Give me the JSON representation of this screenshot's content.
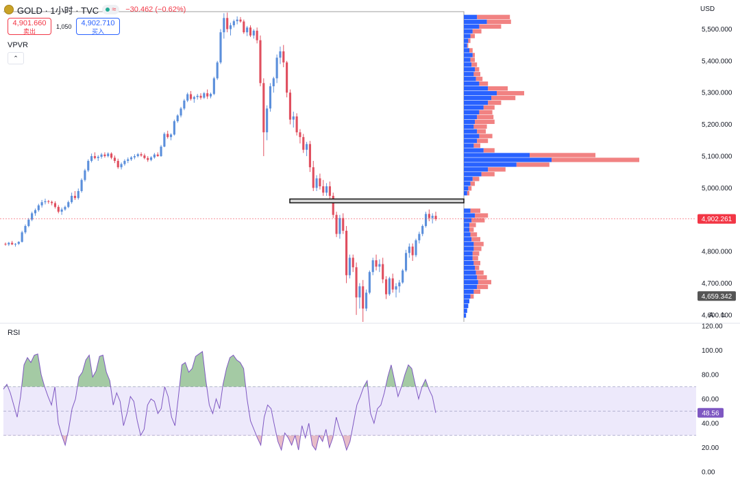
{
  "header": {
    "symbol_title": "GOLD · 1小时 · TVC",
    "status_glyph": "≈",
    "change": "−30.462 (−0.62%)"
  },
  "trade": {
    "sell_price": "4,901.660",
    "sell_label": "卖出",
    "spread": "1,050",
    "buy_price": "4,902.710",
    "buy_label": "买入"
  },
  "indicators": {
    "vpvr_label": "VPVR",
    "collapse_glyph": "⌃",
    "rsi_label": "RSI"
  },
  "axis": {
    "currency": "USD",
    "auto_label": "A",
    "log_label": "L"
  },
  "colors": {
    "up": "#5b8fdb",
    "down": "#e04f5f",
    "vp_up": "#2962ff",
    "vp_down": "#ef6c6c",
    "rsi_line": "#7e57c2",
    "rsi_band": "#ede9fb",
    "last_price": "#f23645",
    "level_tag": "#555555",
    "rsi_tag": "#7e57c2"
  },
  "chart_data": [
    {
      "type": "candlestick",
      "symbol": "GOLD",
      "interval": "1小时",
      "y_ticks": [
        "5,500.000",
        "5,400.000",
        "5,300.000",
        "5,200.000",
        "5,100.000",
        "5,000.000",
        "4,900.000",
        "4,800.000",
        "4,700.000",
        "4,600.000"
      ],
      "y_tick_values": [
        5500,
        5400,
        5300,
        5200,
        5100,
        5000,
        4900,
        4800,
        4700,
        4600
      ],
      "ylim": [
        4578,
        5555
      ],
      "grid": false,
      "last_price": 4902.261,
      "last_price_label": "4,902.261",
      "level_price": 4659.342,
      "level_price_label": "4,659.342",
      "highlight_zone": [
        4953,
        4965
      ],
      "candles": [
        [
          4824,
          4828,
          4818,
          4822
        ],
        [
          4822,
          4830,
          4817,
          4827
        ],
        [
          4827,
          4833,
          4820,
          4822
        ],
        [
          4822,
          4826,
          4815,
          4824
        ],
        [
          4824,
          4832,
          4820,
          4830
        ],
        [
          4830,
          4865,
          4828,
          4860
        ],
        [
          4860,
          4885,
          4855,
          4880
        ],
        [
          4880,
          4905,
          4876,
          4900
        ],
        [
          4900,
          4925,
          4895,
          4920
        ],
        [
          4920,
          4935,
          4912,
          4930
        ],
        [
          4930,
          4950,
          4925,
          4945
        ],
        [
          4945,
          4962,
          4938,
          4955
        ],
        [
          4955,
          4966,
          4948,
          4958
        ],
        [
          4958,
          4962,
          4950,
          4956
        ],
        [
          4956,
          4960,
          4945,
          4952
        ],
        [
          4952,
          4958,
          4935,
          4940
        ],
        [
          4940,
          4946,
          4920,
          4925
        ],
        [
          4925,
          4938,
          4915,
          4932
        ],
        [
          4932,
          4944,
          4928,
          4940
        ],
        [
          4940,
          4960,
          4936,
          4955
        ],
        [
          4955,
          4985,
          4950,
          4975
        ],
        [
          4975,
          4990,
          4962,
          4968
        ],
        [
          4968,
          4998,
          4963,
          4990
        ],
        [
          4990,
          5030,
          4985,
          5025
        ],
        [
          5025,
          5060,
          5020,
          5055
        ],
        [
          5055,
          5090,
          5050,
          5085
        ],
        [
          5085,
          5108,
          5080,
          5100
        ],
        [
          5100,
          5112,
          5090,
          5094
        ],
        [
          5094,
          5103,
          5085,
          5098
        ],
        [
          5098,
          5110,
          5092,
          5105
        ],
        [
          5105,
          5112,
          5095,
          5100
        ],
        [
          5100,
          5112,
          5096,
          5108
        ],
        [
          5108,
          5112,
          5090,
          5095
        ],
        [
          5095,
          5102,
          5078,
          5085
        ],
        [
          5085,
          5092,
          5060,
          5065
        ],
        [
          5065,
          5080,
          5058,
          5075
        ],
        [
          5075,
          5090,
          5070,
          5085
        ],
        [
          5085,
          5096,
          5078,
          5090
        ],
        [
          5090,
          5100,
          5085,
          5096
        ],
        [
          5096,
          5106,
          5090,
          5100
        ],
        [
          5100,
          5110,
          5096,
          5106
        ],
        [
          5106,
          5112,
          5098,
          5102
        ],
        [
          5102,
          5108,
          5090,
          5094
        ],
        [
          5094,
          5100,
          5082,
          5088
        ],
        [
          5088,
          5100,
          5084,
          5096
        ],
        [
          5096,
          5110,
          5092,
          5105
        ],
        [
          5105,
          5112,
          5098,
          5100
        ],
        [
          5100,
          5135,
          5098,
          5130
        ],
        [
          5130,
          5175,
          5128,
          5170
        ],
        [
          5170,
          5180,
          5155,
          5160
        ],
        [
          5160,
          5172,
          5150,
          5168
        ],
        [
          5168,
          5215,
          5165,
          5210
        ],
        [
          5210,
          5232,
          5205,
          5228
        ],
        [
          5228,
          5255,
          5222,
          5250
        ],
        [
          5250,
          5280,
          5245,
          5275
        ],
        [
          5275,
          5300,
          5270,
          5295
        ],
        [
          5295,
          5305,
          5275,
          5280
        ],
        [
          5280,
          5290,
          5268,
          5286
        ],
        [
          5286,
          5296,
          5278,
          5290
        ],
        [
          5290,
          5298,
          5278,
          5284
        ],
        [
          5284,
          5302,
          5280,
          5298
        ],
        [
          5298,
          5310,
          5280,
          5288
        ],
        [
          5288,
          5300,
          5282,
          5296
        ],
        [
          5296,
          5350,
          5292,
          5345
        ],
        [
          5345,
          5400,
          5340,
          5395
        ],
        [
          5395,
          5500,
          5390,
          5490
        ],
        [
          5490,
          5550,
          5470,
          5535
        ],
        [
          5535,
          5552,
          5490,
          5500
        ],
        [
          5500,
          5520,
          5480,
          5512
        ],
        [
          5512,
          5530,
          5505,
          5525
        ],
        [
          5525,
          5540,
          5515,
          5530
        ],
        [
          5530,
          5538,
          5520,
          5524
        ],
        [
          5524,
          5530,
          5485,
          5490
        ],
        [
          5490,
          5510,
          5478,
          5505
        ],
        [
          5505,
          5512,
          5475,
          5480
        ],
        [
          5480,
          5500,
          5470,
          5495
        ],
        [
          5495,
          5505,
          5455,
          5465
        ],
        [
          5465,
          5480,
          5320,
          5330
        ],
        [
          5330,
          5345,
          5100,
          5175
        ],
        [
          5175,
          5260,
          5150,
          5250
        ],
        [
          5250,
          5330,
          5240,
          5320
        ],
        [
          5320,
          5350,
          5300,
          5345
        ],
        [
          5345,
          5420,
          5330,
          5410
        ],
        [
          5410,
          5445,
          5390,
          5430
        ],
        [
          5430,
          5450,
          5380,
          5395
        ],
        [
          5395,
          5400,
          5285,
          5300
        ],
        [
          5300,
          5310,
          5200,
          5215
        ],
        [
          5215,
          5240,
          5190,
          5225
        ],
        [
          5225,
          5235,
          5165,
          5175
        ],
        [
          5175,
          5185,
          5140,
          5160
        ],
        [
          5160,
          5170,
          5110,
          5120
        ],
        [
          5120,
          5145,
          5100,
          5138
        ],
        [
          5138,
          5148,
          5050,
          5065
        ],
        [
          5065,
          5085,
          4990,
          5000
        ],
        [
          5000,
          5040,
          4990,
          5030
        ],
        [
          5030,
          5045,
          4995,
          5005
        ],
        [
          5005,
          5025,
          4975,
          4985
        ],
        [
          4985,
          5015,
          4975,
          5005
        ],
        [
          5005,
          5020,
          4960,
          4975
        ],
        [
          4975,
          4985,
          4905,
          4915
        ],
        [
          4915,
          4925,
          4845,
          4855
        ],
        [
          4855,
          4915,
          4840,
          4905
        ],
        [
          4905,
          4920,
          4855,
          4865
        ],
        [
          4865,
          4880,
          4700,
          4725
        ],
        [
          4725,
          4790,
          4715,
          4780
        ],
        [
          4780,
          4790,
          4735,
          4750
        ],
        [
          4750,
          4765,
          4600,
          4655
        ],
        [
          4655,
          4700,
          4620,
          4690
        ],
        [
          4690,
          4710,
          4578,
          4620
        ],
        [
          4620,
          4680,
          4612,
          4670
        ],
        [
          4670,
          4740,
          4665,
          4735
        ],
        [
          4735,
          4780,
          4725,
          4772
        ],
        [
          4772,
          4790,
          4740,
          4752
        ],
        [
          4752,
          4775,
          4735,
          4760
        ],
        [
          4760,
          4780,
          4700,
          4712
        ],
        [
          4712,
          4722,
          4650,
          4665
        ],
        [
          4665,
          4720,
          4660,
          4715
        ],
        [
          4715,
          4730,
          4670,
          4680
        ],
        [
          4680,
          4700,
          4655,
          4690
        ],
        [
          4690,
          4710,
          4670,
          4702
        ],
        [
          4702,
          4745,
          4698,
          4740
        ],
        [
          4740,
          4805,
          4735,
          4795
        ],
        [
          4795,
          4825,
          4780,
          4815
        ],
        [
          4815,
          4825,
          4770,
          4788
        ],
        [
          4788,
          4840,
          4782,
          4835
        ],
        [
          4835,
          4862,
          4825,
          4855
        ],
        [
          4855,
          4885,
          4848,
          4880
        ],
        [
          4880,
          4925,
          4875,
          4918
        ],
        [
          4918,
          4932,
          4895,
          4905
        ],
        [
          4905,
          4920,
          4888,
          4912
        ],
        [
          4912,
          4925,
          4896,
          4902
        ]
      ]
    },
    {
      "type": "horizontal_volume_profile",
      "name": "VPVR",
      "note": "rows of [price_low, price_high, up_volume, down_volume] in relative units",
      "rows": [
        [
          5530,
          5545,
          12,
          30
        ],
        [
          5515,
          5530,
          21,
          22
        ],
        [
          5500,
          5515,
          14,
          20
        ],
        [
          5485,
          5500,
          8,
          8
        ],
        [
          5470,
          5485,
          6,
          4
        ],
        [
          5455,
          5470,
          4,
          2
        ],
        [
          5440,
          5455,
          3,
          1
        ],
        [
          5425,
          5440,
          5,
          3
        ],
        [
          5410,
          5425,
          8,
          2
        ],
        [
          5395,
          5410,
          6,
          4
        ],
        [
          5380,
          5395,
          7,
          5
        ],
        [
          5365,
          5380,
          10,
          4
        ],
        [
          5350,
          5365,
          9,
          6
        ],
        [
          5335,
          5350,
          11,
          6
        ],
        [
          5320,
          5335,
          14,
          8
        ],
        [
          5305,
          5320,
          22,
          18
        ],
        [
          5290,
          5305,
          30,
          25
        ],
        [
          5275,
          5290,
          25,
          22
        ],
        [
          5260,
          5275,
          22,
          12
        ],
        [
          5245,
          5260,
          18,
          10
        ],
        [
          5230,
          5245,
          14,
          12
        ],
        [
          5215,
          5230,
          12,
          15
        ],
        [
          5200,
          5215,
          10,
          18
        ],
        [
          5185,
          5200,
          9,
          12
        ],
        [
          5170,
          5185,
          12,
          8
        ],
        [
          5155,
          5170,
          14,
          12
        ],
        [
          5140,
          5155,
          12,
          10
        ],
        [
          5125,
          5140,
          9,
          6
        ],
        [
          5110,
          5125,
          18,
          10
        ],
        [
          5095,
          5110,
          60,
          60
        ],
        [
          5080,
          5095,
          80,
          80
        ],
        [
          5065,
          5080,
          48,
          30
        ],
        [
          5050,
          5065,
          22,
          16
        ],
        [
          5035,
          5050,
          16,
          12
        ],
        [
          5020,
          5035,
          8,
          6
        ],
        [
          5005,
          5020,
          6,
          4
        ],
        [
          4990,
          5005,
          4,
          3
        ],
        [
          4975,
          4990,
          3,
          2
        ],
        [
          4920,
          4935,
          6,
          9
        ],
        [
          4905,
          4920,
          10,
          12
        ],
        [
          4890,
          4905,
          7,
          12
        ],
        [
          4875,
          4890,
          5,
          6
        ],
        [
          4860,
          4875,
          5,
          4
        ],
        [
          4845,
          4860,
          6,
          6
        ],
        [
          4830,
          4845,
          7,
          8
        ],
        [
          4815,
          4830,
          9,
          9
        ],
        [
          4800,
          4815,
          9,
          7
        ],
        [
          4785,
          4800,
          8,
          6
        ],
        [
          4770,
          4785,
          8,
          5
        ],
        [
          4755,
          4770,
          9,
          6
        ],
        [
          4740,
          4755,
          10,
          4
        ],
        [
          4725,
          4740,
          11,
          7
        ],
        [
          4710,
          4725,
          12,
          9
        ],
        [
          4695,
          4710,
          13,
          12
        ],
        [
          4680,
          4695,
          12,
          10
        ],
        [
          4665,
          4680,
          9,
          6
        ],
        [
          4650,
          4665,
          6,
          3
        ],
        [
          4635,
          4650,
          5,
          0
        ],
        [
          4620,
          4635,
          4,
          0
        ],
        [
          4605,
          4620,
          3,
          0
        ],
        [
          4590,
          4605,
          2,
          0
        ]
      ]
    },
    {
      "type": "line",
      "name": "RSI",
      "y_ticks": [
        "120.00",
        "100.00",
        "80.00",
        "60.00",
        "40.00",
        "20.00",
        "0.00"
      ],
      "y_tick_values": [
        120,
        100,
        80,
        60,
        40,
        20,
        0
      ],
      "ylim": [
        0,
        120
      ],
      "bands": [
        70,
        50,
        30
      ],
      "last_value": 48.56,
      "last_value_label": "48.56",
      "values": [
        68,
        72,
        65,
        55,
        45,
        62,
        88,
        94,
        90,
        96,
        97,
        80,
        70,
        62,
        55,
        70,
        40,
        30,
        22,
        35,
        52,
        60,
        78,
        82,
        92,
        96,
        78,
        83,
        95,
        96,
        82,
        75,
        55,
        65,
        58,
        38,
        48,
        62,
        58,
        42,
        30,
        35,
        55,
        60,
        58,
        48,
        52,
        70,
        62,
        45,
        38,
        62,
        88,
        90,
        82,
        85,
        95,
        97,
        99,
        75,
        55,
        48,
        60,
        52,
        72,
        85,
        94,
        96,
        92,
        90,
        85,
        60,
        42,
        35,
        28,
        22,
        45,
        55,
        52,
        38,
        25,
        18,
        32,
        28,
        22,
        30,
        18,
        38,
        28,
        40,
        22,
        18,
        30,
        25,
        35,
        20,
        28,
        45,
        35,
        28,
        18,
        25,
        40,
        55,
        62,
        70,
        75,
        48,
        40,
        52,
        55,
        65,
        78,
        88,
        75,
        62,
        70,
        80,
        88,
        85,
        72,
        60,
        70,
        76,
        68,
        62,
        48.56
      ]
    }
  ]
}
